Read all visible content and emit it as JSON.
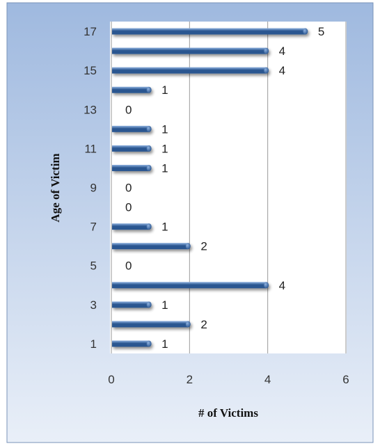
{
  "chart_data": {
    "type": "bar",
    "orientation": "horizontal",
    "ylabel": "Age of Victim",
    "xlabel": "# of Victims",
    "categories": [
      "1",
      "2",
      "3",
      "4",
      "5",
      "6",
      "7",
      "8",
      "9",
      "10",
      "11",
      "12",
      "13",
      "14",
      "15",
      "16",
      "17"
    ],
    "values": [
      1,
      2,
      1,
      4,
      0,
      2,
      1,
      0,
      0,
      1,
      1,
      1,
      0,
      1,
      4,
      4,
      5
    ],
    "category_tick_labels": [
      "1",
      "3",
      "5",
      "7",
      "9",
      "11",
      "13",
      "15",
      "17"
    ],
    "x_tick_labels": [
      "0",
      "2",
      "4",
      "6"
    ],
    "xlim": [
      0,
      6
    ],
    "x_ticks": [
      0,
      2,
      4,
      6
    ],
    "grid": "vertical",
    "legend": "none",
    "data_labels": true,
    "colors": {
      "background_top": "#9fb9df",
      "background_bottom": "#e9eff8",
      "plot_area": "#ffffff",
      "bar_dark": "#2a5690",
      "bar_light": "#8fb2e0",
      "grid": "#9a9a9a",
      "frame": "#7a93b8"
    }
  }
}
